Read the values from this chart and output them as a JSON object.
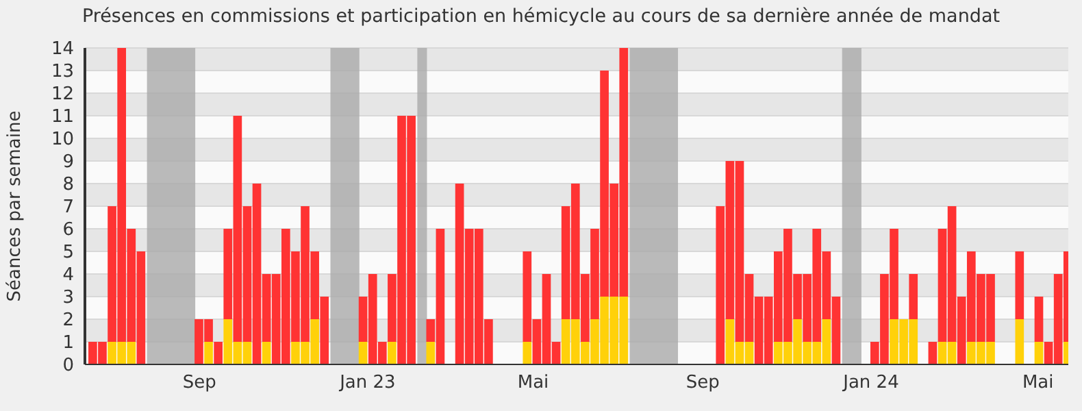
{
  "chart_data": {
    "type": "bar",
    "stacked": true,
    "title": "Présences en commissions et participation en hémicycle au cours de sa dernière année de mandat",
    "ylabel": "Séances par semaine",
    "x": [
      "2022-06-16",
      "2022-06-23",
      "2022-06-30",
      "2022-07-07",
      "2022-07-14",
      "2022-07-21",
      "2022-07-28",
      "2022-08-04",
      "2022-08-11",
      "2022-08-18",
      "2022-08-25",
      "2022-09-01",
      "2022-09-08",
      "2022-09-15",
      "2022-09-22",
      "2022-09-29",
      "2022-10-06",
      "2022-10-13",
      "2022-10-20",
      "2022-10-27",
      "2022-11-03",
      "2022-11-10",
      "2022-11-17",
      "2022-11-24",
      "2022-12-01",
      "2022-12-08",
      "2022-12-15",
      "2022-12-22",
      "2022-12-29",
      "2023-01-05",
      "2023-01-12",
      "2023-01-19",
      "2023-01-26",
      "2023-02-02",
      "2023-02-09",
      "2023-02-16",
      "2023-02-23",
      "2023-03-02",
      "2023-03-09",
      "2023-03-16",
      "2023-03-23",
      "2023-03-30",
      "2023-04-06",
      "2023-04-13",
      "2023-04-20",
      "2023-04-27",
      "2023-05-04",
      "2023-05-11",
      "2023-05-18",
      "2023-05-25",
      "2023-06-01",
      "2023-06-08",
      "2023-06-15",
      "2023-06-22",
      "2023-06-29",
      "2023-07-06",
      "2023-07-13",
      "2023-07-20",
      "2023-07-27",
      "2023-08-03",
      "2023-08-10",
      "2023-08-17",
      "2023-08-24",
      "2023-08-31",
      "2023-09-07",
      "2023-09-14",
      "2023-09-21",
      "2023-09-28",
      "2023-10-05",
      "2023-10-12",
      "2023-10-19",
      "2023-10-26",
      "2023-11-02",
      "2023-11-09",
      "2023-11-16",
      "2023-11-23",
      "2023-11-30",
      "2023-12-07",
      "2023-12-14",
      "2023-12-21",
      "2023-12-28",
      "2024-01-04",
      "2024-01-11",
      "2024-01-18",
      "2024-01-25",
      "2024-02-01",
      "2024-02-08",
      "2024-02-15",
      "2024-02-22",
      "2024-02-29",
      "2024-03-07",
      "2024-03-14",
      "2024-03-21",
      "2024-03-28",
      "2024-04-04",
      "2024-04-11",
      "2024-04-18",
      "2024-04-25",
      "2024-05-02",
      "2024-05-09",
      "2024-05-16",
      "2024-05-23"
    ],
    "series": [
      {
        "color": "#ffd10a",
        "values": [
          0,
          0,
          1,
          1,
          1,
          0,
          0,
          0,
          0,
          0,
          0,
          0,
          1,
          0,
          2,
          1,
          1,
          0,
          1,
          0,
          0,
          1,
          1,
          2,
          0,
          0,
          0,
          0,
          1,
          0,
          0,
          1,
          0,
          0,
          0,
          1,
          0,
          0,
          0,
          0,
          0,
          0,
          0,
          0,
          0,
          1,
          0,
          0,
          0,
          2,
          2,
          1,
          2,
          3,
          3,
          3,
          0,
          0,
          0,
          0,
          0,
          0,
          0,
          0,
          0,
          0,
          2,
          1,
          1,
          0,
          0,
          1,
          1,
          2,
          1,
          1,
          2,
          0,
          0,
          0,
          0,
          0,
          0,
          2,
          2,
          2,
          0,
          0,
          1,
          1,
          0,
          1,
          1,
          1,
          0,
          0,
          2,
          0,
          1,
          0,
          0,
          1
        ]
      },
      {
        "color": "#ff3333",
        "values": [
          1,
          1,
          6,
          13,
          5,
          5,
          0,
          0,
          0,
          0,
          0,
          2,
          1,
          1,
          4,
          10,
          6,
          8,
          3,
          4,
          6,
          4,
          6,
          3,
          3,
          0,
          0,
          0,
          2,
          4,
          1,
          3,
          11,
          11,
          0,
          1,
          6,
          0,
          8,
          6,
          6,
          2,
          0,
          0,
          0,
          4,
          2,
          4,
          1,
          5,
          6,
          3,
          4,
          10,
          5,
          11,
          0,
          0,
          0,
          0,
          0,
          0,
          0,
          0,
          0,
          7,
          7,
          8,
          3,
          3,
          3,
          4,
          5,
          2,
          3,
          5,
          3,
          3,
          0,
          0,
          0,
          1,
          4,
          4,
          0,
          2,
          0,
          1,
          5,
          6,
          3,
          4,
          3,
          3,
          0,
          0,
          3,
          0,
          2,
          1,
          4,
          4
        ]
      }
    ],
    "xlim": [
      "2022-06-10",
      "2024-05-23"
    ],
    "xticks": [
      {
        "value": "2022-09-01",
        "label": "Sep"
      },
      {
        "value": "2023-01-01",
        "label": "Jan 23"
      },
      {
        "value": "2023-05-01",
        "label": "Mai"
      },
      {
        "value": "2023-09-01",
        "label": "Sep"
      },
      {
        "value": "2024-01-01",
        "label": "Jan 24"
      },
      {
        "value": "2024-05-01",
        "label": "Mai"
      }
    ],
    "ylim": [
      0,
      14
    ],
    "yticks": [
      0,
      1,
      2,
      3,
      4,
      5,
      6,
      7,
      8,
      9,
      10,
      11,
      12,
      13,
      14
    ],
    "grid": "y",
    "bands": [
      {
        "axis": "x",
        "from": "2022-07-25",
        "to": "2022-08-29",
        "color": "#aaaaaa"
      },
      {
        "axis": "x",
        "from": "2022-12-05",
        "to": "2022-12-26",
        "color": "#aaaaaa"
      },
      {
        "axis": "x",
        "from": "2023-02-06",
        "to": "2023-02-13",
        "color": "#aaaaaa"
      },
      {
        "axis": "x",
        "from": "2023-07-10",
        "to": "2023-08-14",
        "color": "#aaaaaa"
      },
      {
        "axis": "x",
        "from": "2023-12-11",
        "to": "2023-12-25",
        "color": "#aaaaaa"
      }
    ]
  }
}
